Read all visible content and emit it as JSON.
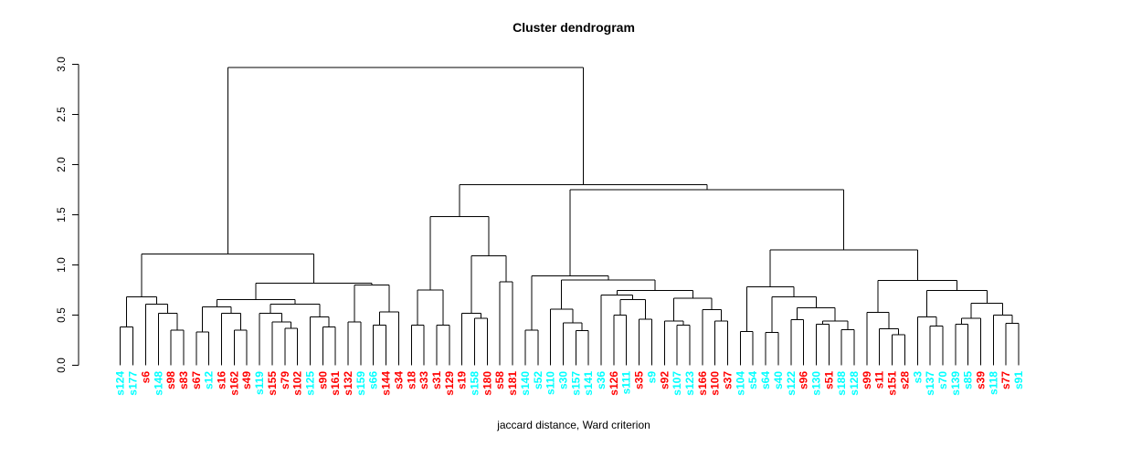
{
  "title": "Cluster dendrogram",
  "xlabel": "jaccard distance, Ward criterion",
  "colors": {
    "cluster1": "#00FFFF",
    "cluster2": "#FF0000",
    "line": "#000000"
  },
  "chart_data": {
    "type": "dendrogram",
    "title": "Cluster dendrogram",
    "xlabel": "jaccard distance, Ward criterion",
    "ylabel": "",
    "ylim": [
      0.0,
      3.0
    ],
    "yticks": [
      "0.0",
      "0.5",
      "1.0",
      "1.5",
      "2.0",
      "2.5",
      "3.0"
    ],
    "grid": false,
    "leaf_colors": {
      "s124": "cyan",
      "s177": "cyan",
      "s6": "red",
      "s148": "cyan",
      "s98": "red",
      "s83": "red",
      "s67": "red",
      "s12": "cyan",
      "s16": "red",
      "s162": "red",
      "s49": "red",
      "s119": "cyan",
      "s155": "red",
      "s79": "red",
      "s102": "red",
      "s125": "cyan",
      "s90": "red",
      "s161": "red",
      "s132": "red",
      "s159": "cyan",
      "s66": "cyan",
      "s144": "red",
      "s34": "red",
      "s18": "red",
      "s33": "red",
      "s31": "red",
      "s129": "red",
      "s19": "red",
      "s158": "cyan",
      "s180": "red",
      "s58": "red",
      "s181": "red",
      "s140": "cyan",
      "s52": "cyan",
      "s110": "cyan",
      "s30": "cyan",
      "s157": "cyan",
      "s141": "cyan",
      "s36": "cyan",
      "s126": "red",
      "s111": "cyan",
      "s35": "red",
      "s9": "cyan",
      "s92": "red",
      "s107": "cyan",
      "s123": "cyan",
      "s166": "red",
      "s100": "red",
      "s37": "red",
      "s104": "cyan",
      "s54": "cyan",
      "s64": "cyan",
      "s40": "cyan",
      "s122": "cyan",
      "s96": "red",
      "s130": "cyan",
      "s51": "red",
      "s188": "cyan",
      "s128": "cyan",
      "s99": "red",
      "s11": "red",
      "s151": "red",
      "s28": "red",
      "s3": "cyan",
      "s137": "cyan",
      "s70": "cyan",
      "s139": "cyan",
      "s85": "cyan",
      "s39": "red",
      "s118": "cyan",
      "s77": "red",
      "s91": "cyan"
    },
    "tree": {
      "h": 2.97,
      "c": [
        {
          "h": 1.11,
          "c": [
            {
              "h": 0.68,
              "c": [
                {
                  "h": 0.38,
                  "c": [
                    "s124",
                    "s177"
                  ]
                },
                {
                  "h": 0.61,
                  "c": [
                    "s6",
                    {
                      "h": 0.52,
                      "c": [
                        "s148",
                        {
                          "h": 0.35,
                          "c": [
                            "s98",
                            "s83"
                          ]
                        }
                      ]
                    }
                  ]
                }
              ]
            },
            {
              "h": 0.82,
              "c": [
                {
                  "h": 0.655,
                  "c": [
                    {
                      "h": 0.58,
                      "c": [
                        {
                          "h": 0.33,
                          "c": [
                            "s67",
                            "s12"
                          ]
                        },
                        {
                          "h": 0.52,
                          "c": [
                            "s16",
                            {
                              "h": 0.35,
                              "c": [
                                "s162",
                                "s49"
                              ]
                            }
                          ]
                        }
                      ]
                    },
                    {
                      "h": 0.61,
                      "c": [
                        {
                          "h": 0.52,
                          "c": [
                            "s119",
                            {
                              "h": 0.43,
                              "c": [
                                "s155",
                                {
                                  "h": 0.37,
                                  "c": [
                                    "s79",
                                    "s102"
                                  ]
                                }
                              ]
                            }
                          ]
                        },
                        {
                          "h": 0.48,
                          "c": [
                            "s125",
                            {
                              "h": 0.38,
                              "c": [
                                "s90",
                                "s161"
                              ]
                            }
                          ]
                        }
                      ]
                    }
                  ]
                },
                {
                  "h": 0.8,
                  "c": [
                    {
                      "h": 0.43,
                      "c": [
                        "s132",
                        "s159"
                      ]
                    },
                    {
                      "h": 0.53,
                      "c": [
                        {
                          "h": 0.4,
                          "c": [
                            "s66",
                            "s144"
                          ]
                        },
                        "s34"
                      ]
                    }
                  ]
                }
              ]
            }
          ]
        },
        {
          "h": 1.8,
          "c": [
            {
              "h": 1.48,
              "c": [
                {
                  "h": 0.75,
                  "c": [
                    {
                      "h": 0.4,
                      "c": [
                        "s18",
                        "s33"
                      ]
                    },
                    {
                      "h": 0.4,
                      "c": [
                        "s31",
                        "s129"
                      ]
                    }
                  ]
                },
                {
                  "h": 1.09,
                  "c": [
                    {
                      "h": 0.52,
                      "c": [
                        "s19",
                        {
                          "h": 0.47,
                          "c": [
                            "s158",
                            "s180"
                          ]
                        }
                      ]
                    },
                    {
                      "h": 0.83,
                      "c": [
                        "s58",
                        "s181"
                      ]
                    }
                  ]
                }
              ]
            },
            {
              "h": 1.75,
              "c": [
                {
                  "h": 0.89,
                  "c": [
                    {
                      "h": 0.35,
                      "c": [
                        "s140",
                        "s52"
                      ]
                    },
                    {
                      "h": 0.85,
                      "c": [
                        {
                          "h": 0.56,
                          "c": [
                            "s110",
                            {
                              "h": 0.425,
                              "c": [
                                "s30",
                                {
                                  "h": 0.345,
                                  "c": [
                                    "s157",
                                    "s141"
                                  ]
                                }
                              ]
                            }
                          ]
                        },
                        {
                          "h": 0.745,
                          "c": [
                            {
                              "h": 0.7,
                              "c": [
                                "s36",
                                {
                                  "h": 0.655,
                                  "c": [
                                    {
                                      "h": 0.5,
                                      "c": [
                                        "s126",
                                        "s111"
                                      ]
                                    },
                                    {
                                      "h": 0.46,
                                      "c": [
                                        "s35",
                                        "s9"
                                      ]
                                    }
                                  ]
                                }
                              ]
                            },
                            {
                              "h": 0.667,
                              "c": [
                                {
                                  "h": 0.44,
                                  "c": [
                                    "s92",
                                    {
                                      "h": 0.4,
                                      "c": [
                                        "s107",
                                        "s123"
                                      ]
                                    }
                                  ]
                                },
                                {
                                  "h": 0.554,
                                  "c": [
                                    "s166",
                                    {
                                      "h": 0.44,
                                      "c": [
                                        "s100",
                                        "s37"
                                      ]
                                    }
                                  ]
                                }
                              ]
                            }
                          ]
                        }
                      ]
                    }
                  ]
                },
                {
                  "h": 1.15,
                  "c": [
                    {
                      "h": 0.78,
                      "c": [
                        {
                          "h": 0.336,
                          "c": [
                            "s104",
                            "s54"
                          ]
                        },
                        {
                          "h": 0.68,
                          "c": [
                            {
                              "h": 0.327,
                              "c": [
                                "s64",
                                "s40"
                              ]
                            },
                            {
                              "h": 0.573,
                              "c": [
                                {
                                  "h": 0.455,
                                  "c": [
                                    "s122",
                                    "s96"
                                  ]
                                },
                                {
                                  "h": 0.44,
                                  "c": [
                                    {
                                      "h": 0.41,
                                      "c": [
                                        "s130",
                                        "s51"
                                      ]
                                    },
                                    {
                                      "h": 0.355,
                                      "c": [
                                        "s188",
                                        "s128"
                                      ]
                                    }
                                  ]
                                }
                              ]
                            }
                          ]
                        }
                      ]
                    },
                    {
                      "h": 0.845,
                      "c": [
                        {
                          "h": 0.527,
                          "c": [
                            "s99",
                            {
                              "h": 0.364,
                              "c": [
                                "s11",
                                {
                                  "h": 0.303,
                                  "c": [
                                    "s151",
                                    "s28"
                                  ]
                                }
                              ]
                            }
                          ]
                        },
                        {
                          "h": 0.745,
                          "c": [
                            {
                              "h": 0.48,
                              "c": [
                                "s3",
                                {
                                  "h": 0.39,
                                  "c": [
                                    "s137",
                                    "s70"
                                  ]
                                }
                              ]
                            },
                            {
                              "h": 0.618,
                              "c": [
                                {
                                  "h": 0.47,
                                  "c": [
                                    {
                                      "h": 0.41,
                                      "c": [
                                        "s139",
                                        "s85"
                                      ]
                                    },
                                    "s39"
                                  ]
                                },
                                {
                                  "h": 0.5,
                                  "c": [
                                    "s118",
                                    {
                                      "h": 0.42,
                                      "c": [
                                        "s77",
                                        "s91"
                                      ]
                                    }
                                  ]
                                }
                              ]
                            }
                          ]
                        }
                      ]
                    }
                  ]
                }
              ]
            }
          ]
        }
      ]
    }
  }
}
